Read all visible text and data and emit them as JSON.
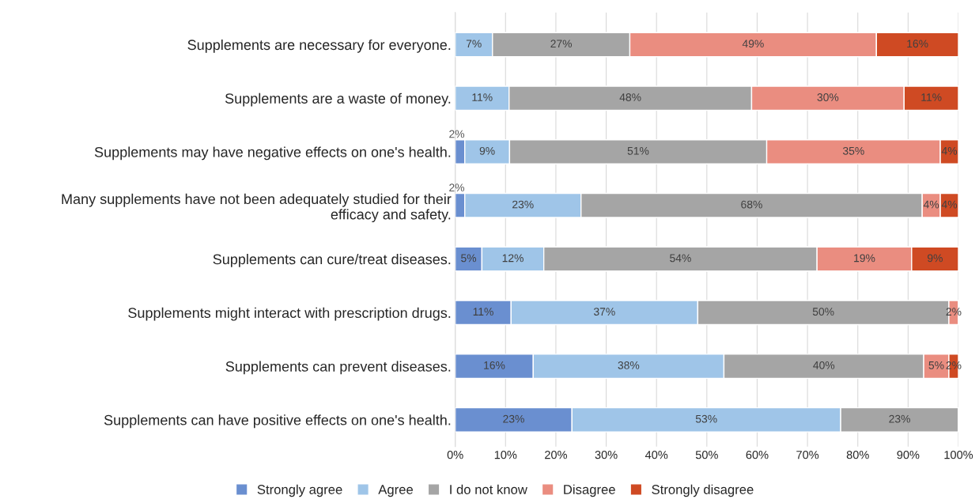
{
  "chart_data": {
    "type": "bar",
    "orientation": "horizontal",
    "stacked": true,
    "categories": [
      "Supplements are necessary for everyone.",
      "Supplements are a waste of money.",
      "Supplements may have negative effects on one's health.",
      "Many supplements have not been adequately studied for their\nefficacy and safety.",
      "Supplements can cure/treat diseases.",
      "Supplements might interact with prescription drugs.",
      "Supplements can prevent diseases.",
      "Supplements can have positive effects on one's health."
    ],
    "series": [
      {
        "name": "Strongly agree",
        "color": "#6a8fd0",
        "values": [
          null,
          null,
          1.9,
          1.9,
          5.3,
          11.1,
          15.5,
          23.2
        ],
        "value_labels": [
          null,
          null,
          "2%",
          "2%",
          "5%",
          "11%",
          "16%",
          "23%"
        ]
      },
      {
        "name": "Agree",
        "color": "#9fc5e8",
        "values": [
          7.4,
          10.7,
          8.9,
          23.1,
          12.3,
          37.1,
          37.9,
          53.4
        ],
        "value_labels": [
          "7%",
          "11%",
          "9%",
          "23%",
          "12%",
          "37%",
          "38%",
          "53%"
        ]
      },
      {
        "name": "I do not know",
        "color": "#a5a5a5",
        "values": [
          27.3,
          48.2,
          51.1,
          67.8,
          54.3,
          49.9,
          39.7,
          23.4
        ],
        "value_labels": [
          "27%",
          "48%",
          "51%",
          "68%",
          "54%",
          "50%",
          "40%",
          "23%"
        ]
      },
      {
        "name": "Disagree",
        "color": "#ea8d80",
        "values": [
          49.0,
          30.3,
          34.5,
          3.6,
          18.8,
          1.9,
          5.0,
          null
        ],
        "value_labels": [
          "49%",
          "30%",
          "35%",
          "4%",
          "19%",
          "2%",
          "5%",
          null
        ]
      },
      {
        "name": "Strongly disagree",
        "color": "#cf4a23",
        "values": [
          16.3,
          10.8,
          3.6,
          3.6,
          9.3,
          null,
          1.9,
          null
        ],
        "value_labels": [
          "16%",
          "11%",
          "4%",
          "4%",
          "9%",
          null,
          "2%",
          null
        ]
      }
    ],
    "xlim": [
      0,
      100
    ],
    "xticks": [
      {
        "value": 0,
        "label": "0%"
      },
      {
        "value": 10,
        "label": "10%"
      },
      {
        "value": 20,
        "label": "20%"
      },
      {
        "value": 30,
        "label": "30%"
      },
      {
        "value": 40,
        "label": "40%"
      },
      {
        "value": 50,
        "label": "50%"
      },
      {
        "value": 60,
        "label": "60%"
      },
      {
        "value": 70,
        "label": "70%"
      },
      {
        "value": 80,
        "label": "80%"
      },
      {
        "value": 90,
        "label": "90%"
      },
      {
        "value": 100,
        "label": "100%"
      }
    ],
    "grid": "x",
    "legend": "bottom"
  }
}
